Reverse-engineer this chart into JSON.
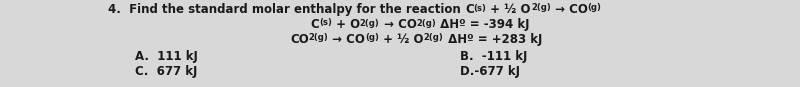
{
  "bg_color": "#d8d8d8",
  "text_color": "#1a1a1a",
  "font_size": 8.5,
  "line1": "4.  Find the standard molar enthalpy for the reaction C",
  "line1_sub1": "(s)",
  "line1_mid": " + ½ O",
  "line1_sub2": "2(g)",
  "line1_arr": " → CO",
  "line1_sub3": "(g)",
  "rxn1_pre": "C",
  "rxn1_sub1": "(s)",
  "rxn1_mid": " + O",
  "rxn1_sub2": "2(g)",
  "rxn1_arr": " → CO",
  "rxn1_sub3": "2(g)",
  "rxn1_dh": " ΔHº = -394 kJ",
  "rxn2_pre": "CO",
  "rxn2_sub1": "2(g)",
  "rxn2_arr": " → CO",
  "rxn2_sub2": "(g)",
  "rxn2_mid": " + ½ O",
  "rxn2_sub3": "2(g)",
  "rxn2_dh": " ΔHº = +283 kJ",
  "ans_A": "A.  111 kJ",
  "ans_B": "B.  -111 kJ",
  "ans_C": "C.  677 kJ",
  "ans_D": "D.-677 kJ"
}
